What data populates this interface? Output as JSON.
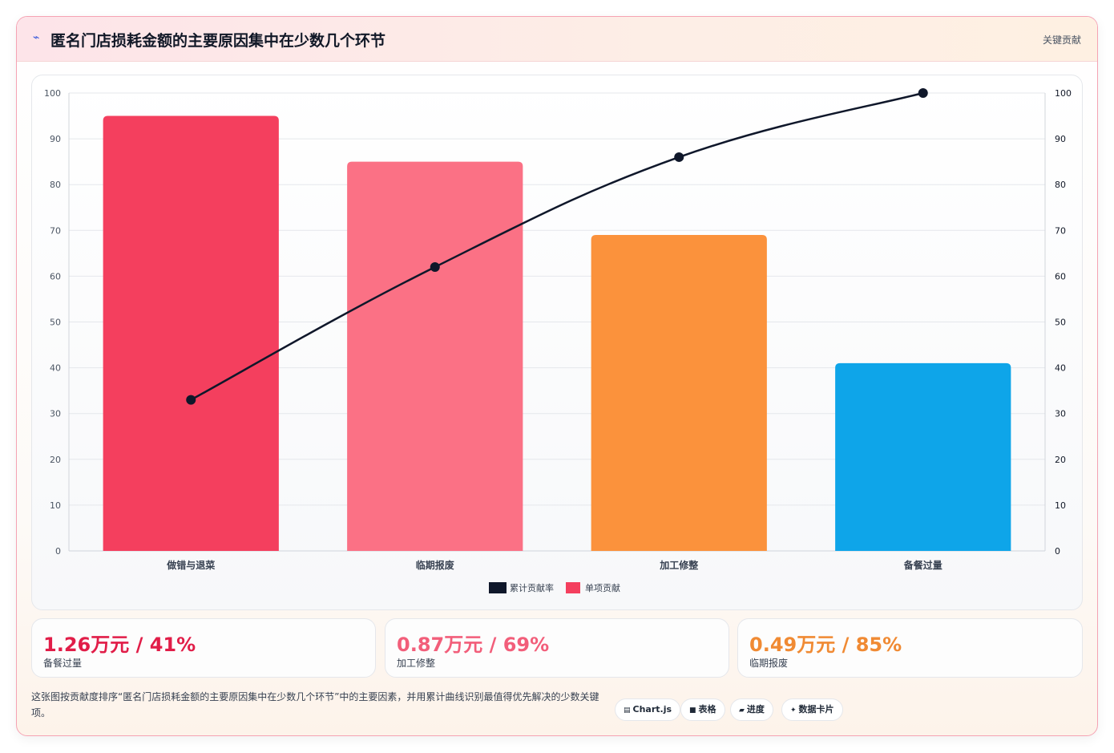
{
  "header": {
    "icon": "trend-icon",
    "title": "匿名门店损耗金额的主要原因集中在少数几个环节",
    "tag": "关键贡献"
  },
  "chart_data": {
    "type": "bar",
    "categories": [
      "做错与退菜",
      "临期报废",
      "加工修整",
      "备餐过量"
    ],
    "series": [
      {
        "name": "单项贡献",
        "type": "bar",
        "values": [
          95,
          85,
          69,
          41
        ],
        "colors": [
          "#f43f5e",
          "#fb7185",
          "#fb923c",
          "#0ea5e9"
        ]
      },
      {
        "name": "累计贡献率",
        "type": "line",
        "values": [
          33,
          62,
          86,
          100
        ],
        "color": "#0f172a"
      }
    ],
    "ylim": [
      0,
      100
    ],
    "y2lim": [
      0,
      100
    ],
    "yticks": [
      0,
      10,
      20,
      30,
      40,
      50,
      60,
      70,
      80,
      90,
      100
    ],
    "legend": {
      "placement": "bottom",
      "entries": [
        "累计贡献率",
        "单项贡献"
      ],
      "colors": [
        "#0f172a",
        "#f43f5e"
      ]
    },
    "grid": true
  },
  "stats": [
    {
      "value": "1.26万元 / 41%",
      "label": "备餐过量",
      "color": "#e11d48"
    },
    {
      "value": "0.87万元 / 69%",
      "label": "加工修整",
      "color": "#f25e7a"
    },
    {
      "value": "0.49万元 / 85%",
      "label": "临期报废",
      "color": "#f08a33"
    }
  ],
  "footer": {
    "text": "这张图按贡献度排序“匿名门店损耗金额的主要原因集中在少数几个环节”中的主要因素，并用累计曲线识别最值得优先解决的少数关键项。"
  },
  "chips": [
    {
      "icon": "chart-icon",
      "glyph": "▤",
      "label": "Chart.js"
    },
    {
      "icon": "table-icon",
      "glyph": "■",
      "label": "表格"
    },
    {
      "icon": "progress-icon",
      "glyph": "▰",
      "label": "进度"
    },
    {
      "icon": "card-icon",
      "glyph": "✦",
      "label": "数据卡片"
    }
  ]
}
